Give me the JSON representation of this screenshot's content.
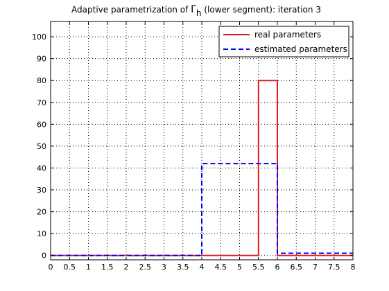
{
  "chart_data": {
    "type": "line",
    "title": {
      "prefix": "Adaptive parametrization of ",
      "symbol": "Γ",
      "subscript": "h",
      "suffix": " (lower segment): iteration 3"
    },
    "xlabel": "",
    "ylabel": "",
    "xlim": [
      0,
      8
    ],
    "ylim": [
      -2,
      107
    ],
    "x_ticks": [
      "0",
      "0.5",
      "1",
      "1.5",
      "2",
      "2.5",
      "3",
      "3.5",
      "4",
      "4.5",
      "5",
      "5.5",
      "6",
      "6.5",
      "7",
      "7.5",
      "8"
    ],
    "y_ticks": [
      "0",
      "10",
      "20",
      "30",
      "40",
      "50",
      "60",
      "70",
      "80",
      "90",
      "100"
    ],
    "grid": true,
    "legend_position": "top-right",
    "series": [
      {
        "name": "real parameters",
        "color": "#e41a1c",
        "style": "solid",
        "x": [
          0,
          5.5,
          5.5,
          6,
          6,
          8
        ],
        "y": [
          0,
          0,
          80,
          80,
          0,
          0
        ]
      },
      {
        "name": "estimated parameters",
        "color": "#0000ff",
        "style": "dashed",
        "x": [
          0,
          4,
          4,
          6,
          6,
          8
        ],
        "y": [
          0,
          0,
          42,
          42,
          1,
          1
        ]
      }
    ]
  }
}
